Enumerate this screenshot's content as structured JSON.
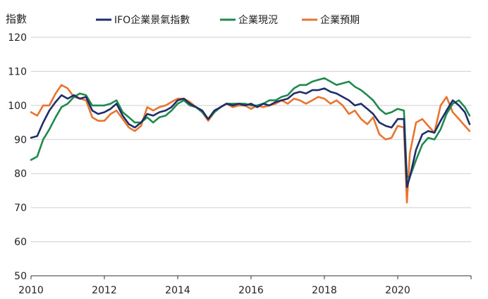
{
  "chart_data": {
    "type": "line",
    "title": "",
    "ylabel": "指數",
    "xlabel": "",
    "xlim": [
      2010,
      2022
    ],
    "ylim": [
      50,
      120
    ],
    "yticks": [
      50,
      60,
      70,
      80,
      90,
      100,
      110,
      120
    ],
    "xticks": [
      2010,
      2012,
      2014,
      2016,
      2018,
      2020
    ],
    "grid": "horizontal",
    "legend": "top",
    "series": [
      {
        "name": "IFO企業景氣指數",
        "color": "#1f2d6b",
        "x": [
          2010.0,
          2010.17,
          2010.33,
          2010.5,
          2010.67,
          2010.83,
          2011.0,
          2011.17,
          2011.33,
          2011.5,
          2011.67,
          2011.83,
          2012.0,
          2012.17,
          2012.33,
          2012.5,
          2012.67,
          2012.83,
          2013.0,
          2013.17,
          2013.33,
          2013.5,
          2013.67,
          2013.83,
          2014.0,
          2014.17,
          2014.33,
          2014.5,
          2014.67,
          2014.83,
          2015.0,
          2015.17,
          2015.33,
          2015.5,
          2015.67,
          2015.83,
          2016.0,
          2016.17,
          2016.33,
          2016.5,
          2016.67,
          2016.83,
          2017.0,
          2017.17,
          2017.33,
          2017.5,
          2017.67,
          2017.83,
          2018.0,
          2018.17,
          2018.33,
          2018.5,
          2018.67,
          2018.83,
          2019.0,
          2019.17,
          2019.33,
          2019.5,
          2019.67,
          2019.83,
          2020.0,
          2020.17,
          2020.25,
          2020.33,
          2020.5,
          2020.67,
          2020.83,
          2021.0,
          2021.17,
          2021.33,
          2021.5,
          2021.67,
          2021.83,
          2021.96
        ],
        "values": [
          90.5,
          91,
          95,
          98.5,
          101,
          103,
          102,
          103,
          102,
          102.5,
          98.5,
          97.5,
          98,
          99,
          100.5,
          97,
          94.5,
          93.5,
          95,
          97.5,
          97,
          98,
          98.5,
          99.5,
          101.5,
          102,
          100.5,
          99.5,
          98.5,
          96,
          98.5,
          99.5,
          100.5,
          100,
          100.5,
          100,
          100.5,
          99.5,
          100.5,
          100,
          101,
          101.5,
          102,
          103.5,
          104,
          103.5,
          104.5,
          104.5,
          105,
          104,
          103.5,
          102.5,
          101.5,
          100,
          100.5,
          99,
          97.5,
          95,
          94,
          93.5,
          96,
          96,
          76,
          79,
          87,
          91.5,
          92.5,
          92,
          95.5,
          98.5,
          101.5,
          100,
          98,
          94.5
        ]
      },
      {
        "name": "企業現況",
        "color": "#1e8a4c",
        "x": [
          2010.0,
          2010.17,
          2010.33,
          2010.5,
          2010.67,
          2010.83,
          2011.0,
          2011.17,
          2011.33,
          2011.5,
          2011.67,
          2011.83,
          2012.0,
          2012.17,
          2012.33,
          2012.5,
          2012.67,
          2012.83,
          2013.0,
          2013.17,
          2013.33,
          2013.5,
          2013.67,
          2013.83,
          2014.0,
          2014.17,
          2014.33,
          2014.5,
          2014.67,
          2014.83,
          2015.0,
          2015.17,
          2015.33,
          2015.5,
          2015.67,
          2015.83,
          2016.0,
          2016.17,
          2016.33,
          2016.5,
          2016.67,
          2016.83,
          2017.0,
          2017.17,
          2017.33,
          2017.5,
          2017.67,
          2017.83,
          2018.0,
          2018.17,
          2018.33,
          2018.5,
          2018.67,
          2018.83,
          2019.0,
          2019.17,
          2019.33,
          2019.5,
          2019.67,
          2019.83,
          2020.0,
          2020.17,
          2020.25,
          2020.33,
          2020.5,
          2020.67,
          2020.83,
          2021.0,
          2021.17,
          2021.33,
          2021.5,
          2021.67,
          2021.83,
          2021.96
        ],
        "values": [
          84,
          85,
          90,
          93,
          96.5,
          99.5,
          100.5,
          102.5,
          103.5,
          103,
          100,
          100,
          100,
          100.5,
          101.5,
          98,
          96.5,
          95,
          95,
          96.5,
          95,
          96.5,
          97,
          98.5,
          100.5,
          101.5,
          100,
          99.5,
          98,
          96,
          98,
          99.5,
          100.5,
          100.5,
          100.5,
          100.5,
          100,
          100,
          100.5,
          101.5,
          101.5,
          102.5,
          103,
          105,
          106,
          106,
          107,
          107.5,
          108,
          107,
          106,
          106.5,
          107,
          105.5,
          104.5,
          103,
          101.5,
          99,
          97.5,
          98,
          99,
          98.5,
          79,
          79,
          84,
          88.5,
          90.5,
          90,
          93,
          97.5,
          100.5,
          101.5,
          99.5,
          97
        ]
      },
      {
        "name": "企業預期",
        "color": "#e8742f",
        "x": [
          2010.0,
          2010.17,
          2010.33,
          2010.5,
          2010.67,
          2010.83,
          2011.0,
          2011.17,
          2011.33,
          2011.5,
          2011.67,
          2011.83,
          2012.0,
          2012.17,
          2012.33,
          2012.5,
          2012.67,
          2012.83,
          2013.0,
          2013.17,
          2013.33,
          2013.5,
          2013.67,
          2013.83,
          2014.0,
          2014.17,
          2014.33,
          2014.5,
          2014.67,
          2014.83,
          2015.0,
          2015.17,
          2015.33,
          2015.5,
          2015.67,
          2015.83,
          2016.0,
          2016.17,
          2016.33,
          2016.5,
          2016.67,
          2016.83,
          2017.0,
          2017.17,
          2017.33,
          2017.5,
          2017.67,
          2017.83,
          2018.0,
          2018.17,
          2018.33,
          2018.5,
          2018.67,
          2018.83,
          2019.0,
          2019.17,
          2019.33,
          2019.5,
          2019.67,
          2019.83,
          2020.0,
          2020.17,
          2020.25,
          2020.33,
          2020.5,
          2020.67,
          2020.83,
          2021.0,
          2021.17,
          2021.33,
          2021.5,
          2021.67,
          2021.83,
          2021.96
        ],
        "values": [
          98,
          97,
          100,
          100,
          103.5,
          106,
          105,
          102.5,
          102,
          101.5,
          96.5,
          95.5,
          95.5,
          97.5,
          98.5,
          96,
          93.5,
          92.5,
          94,
          99.5,
          98.5,
          99.5,
          100,
          101,
          102,
          102,
          101,
          99.5,
          98,
          95.5,
          98,
          99.5,
          100.5,
          99.5,
          100,
          100,
          99,
          100,
          99.5,
          100,
          100.5,
          101.5,
          100.5,
          102,
          101.5,
          100.5,
          101.5,
          102.5,
          102,
          100.5,
          101.5,
          100,
          97.5,
          98.5,
          96,
          94.5,
          96.5,
          91.5,
          90,
          90.5,
          94,
          93.5,
          71.5,
          86,
          95,
          96,
          94,
          92,
          100,
          102.5,
          98,
          96,
          94,
          92.5
        ]
      }
    ]
  }
}
